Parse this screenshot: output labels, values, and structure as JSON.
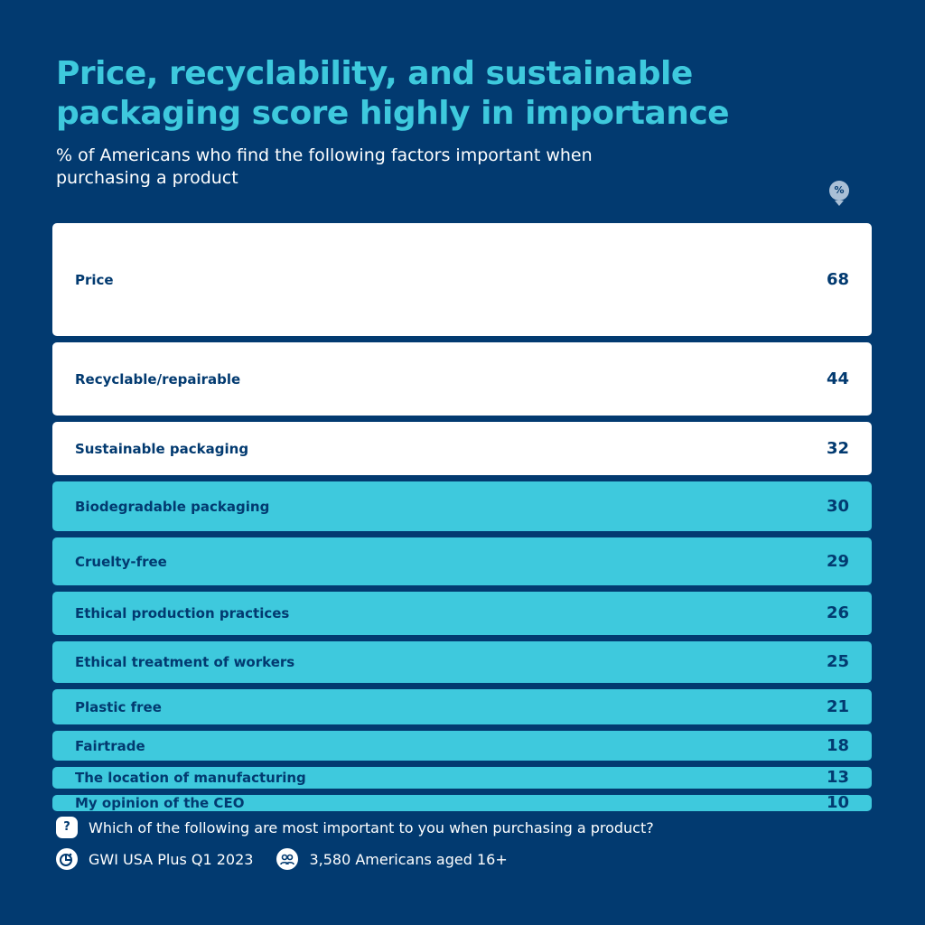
{
  "title": "Price, recyclability, and sustainable packaging score highly in importance",
  "subtitle": "% of Americans who find the following factors important when purchasing a product",
  "unit_badge": "%",
  "colors": {
    "background": "#023a70",
    "accent": "#3ec9dd",
    "highlight": "#ffffff",
    "text": "#023a70"
  },
  "chart_data": {
    "type": "bar",
    "orientation": "horizontal-stacked-rows",
    "title": "Price, recyclability, and sustainable packaging score highly in importance",
    "categories": [
      "Price",
      "Recyclable/repairable",
      "Sustainable packaging",
      "Biodegradable packaging",
      "Cruelty-free",
      "Ethical production practices",
      "Ethical treatment of workers",
      "Plastic free",
      "Fairtrade",
      "The location of manufacturing",
      "My opinion of the CEO"
    ],
    "values": [
      68,
      44,
      32,
      30,
      29,
      26,
      25,
      21,
      18,
      13,
      10
    ],
    "highlighted_top": 3
  },
  "footer": {
    "question": "Which of the following are most important to you when purchasing a product?",
    "source": "GWI USA Plus Q1 2023",
    "sample": "3,580 Americans aged 16+",
    "question_icon": "?",
    "source_icon": "pie-chart-icon",
    "sample_icon": "people-icon"
  }
}
